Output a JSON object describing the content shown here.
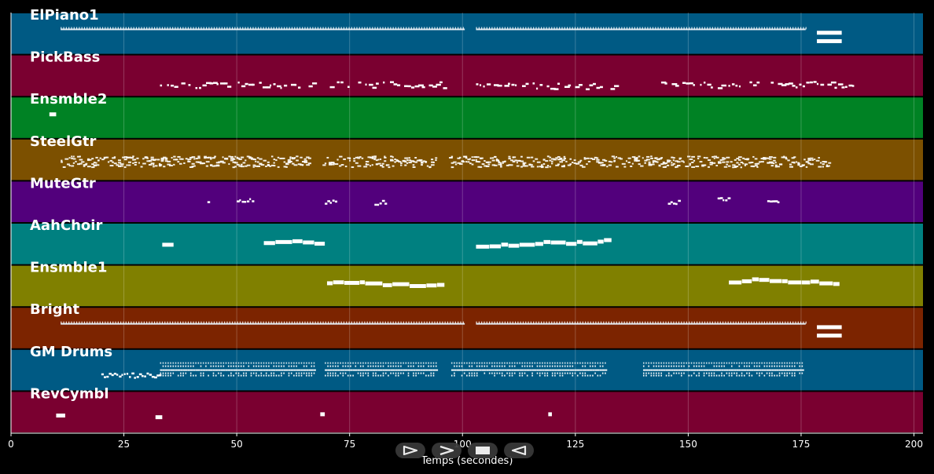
{
  "chart_data": {
    "type": "piano-roll",
    "xlabel": "Temps (secondes)",
    "xlim": [
      0,
      202
    ],
    "xticks": [
      0,
      25,
      50,
      75,
      100,
      125,
      150,
      175,
      200
    ],
    "grid": true,
    "tracks": [
      {
        "name": "ElPiano1",
        "color": "#005a84",
        "notes": [
          {
            "x": [
              11,
              100.5
            ],
            "y": 0.4,
            "style": "tick-run"
          },
          {
            "x": [
              103,
              176
            ],
            "y": 0.4,
            "style": "tick-run"
          },
          {
            "x": [
              178.5,
              184
            ],
            "y": 0.48,
            "style": "block"
          },
          {
            "x": [
              178.5,
              184
            ],
            "y": 0.68,
            "style": "block"
          }
        ]
      },
      {
        "name": "PickBass",
        "color": "#7a0030",
        "notes": [
          {
            "x": [
              33,
              97
            ],
            "y": 0.72,
            "style": "scatter"
          },
          {
            "x": [
              103,
              134
            ],
            "y": 0.75,
            "style": "scatter"
          },
          {
            "x": [
              144,
              187
            ],
            "y": 0.72,
            "style": "scatter"
          }
        ]
      },
      {
        "name": "Ensmble2",
        "color": "#008224",
        "notes": [
          {
            "x": [
              8.5,
              10
            ],
            "y": 0.42,
            "style": "block"
          }
        ]
      },
      {
        "name": "SteelGtr",
        "color": "#7c5000",
        "notes": [
          {
            "x": [
              11,
              66
            ],
            "y": 0.55,
            "style": "dense"
          },
          {
            "x": [
              69,
              94
            ],
            "y": 0.55,
            "style": "dense"
          },
          {
            "x": [
              97,
              133
            ],
            "y": 0.55,
            "style": "dense"
          },
          {
            "x": [
              133,
              181
            ],
            "y": 0.55,
            "style": "dense"
          }
        ]
      },
      {
        "name": "MuteGtr",
        "color": "#52007c",
        "notes": [
          {
            "x": [
              43.5,
              44
            ],
            "y": 0.5,
            "style": "sparse"
          },
          {
            "x": [
              50,
              53.5
            ],
            "y": 0.48,
            "style": "sparse"
          },
          {
            "x": [
              69.5,
              72
            ],
            "y": 0.52,
            "style": "sparse"
          },
          {
            "x": [
              80.5,
              83
            ],
            "y": 0.52,
            "style": "sparse"
          },
          {
            "x": [
              145.5,
              148
            ],
            "y": 0.52,
            "style": "sparse"
          },
          {
            "x": [
              156.5,
              159
            ],
            "y": 0.45,
            "style": "sparse"
          },
          {
            "x": [
              167.5,
              170
            ],
            "y": 0.52,
            "style": "sparse"
          }
        ]
      },
      {
        "name": "AahChoir",
        "color": "#008080",
        "notes": [
          {
            "x": [
              33.5,
              36
            ],
            "y": 0.52,
            "style": "block"
          },
          {
            "x": [
              56,
              69.5
            ],
            "y": 0.52,
            "style": "melody"
          },
          {
            "x": [
              103,
              133
            ],
            "y": 0.52,
            "style": "melody"
          }
        ]
      },
      {
        "name": "Ensmble1",
        "color": "#808000",
        "notes": [
          {
            "x": [
              70,
              96
            ],
            "y": 0.45,
            "style": "melody"
          },
          {
            "x": [
              159,
              183.5
            ],
            "y": 0.45,
            "style": "melody"
          }
        ]
      },
      {
        "name": "Bright",
        "color": "#7c2400",
        "notes": [
          {
            "x": [
              11,
              100.5
            ],
            "y": 0.4,
            "style": "tick-run"
          },
          {
            "x": [
              103,
              176
            ],
            "y": 0.4,
            "style": "tick-run"
          },
          {
            "x": [
              178.5,
              184
            ],
            "y": 0.48,
            "style": "block"
          },
          {
            "x": [
              178.5,
              184
            ],
            "y": 0.68,
            "style": "block"
          }
        ]
      },
      {
        "name": "GM Drums",
        "color": "#005a84",
        "notes": [
          {
            "x": [
              20,
              33
            ],
            "y": 0.63,
            "style": "sparse"
          },
          {
            "x": [
              33,
              67.5
            ],
            "y": 0.5,
            "style": "drums"
          },
          {
            "x": [
              69.5,
              94.5
            ],
            "y": 0.5,
            "style": "drums"
          },
          {
            "x": [
              97.5,
              131.5
            ],
            "y": 0.5,
            "style": "drums"
          },
          {
            "x": [
              140,
              175.5
            ],
            "y": 0.5,
            "style": "drums"
          }
        ]
      },
      {
        "name": "RevCymbl",
        "color": "#7a0030",
        "notes": [
          {
            "x": [
              10,
              12
            ],
            "y": 0.58,
            "style": "block"
          },
          {
            "x": [
              32,
              33.5
            ],
            "y": 0.62,
            "style": "block"
          },
          {
            "x": [
              68.5,
              69.5
            ],
            "y": 0.55,
            "style": "block"
          },
          {
            "x": [
              119,
              119.8
            ],
            "y": 0.55,
            "style": "block"
          }
        ]
      }
    ]
  },
  "controls": [
    {
      "name": "play-forward-button",
      "icon": "play-outline-icon"
    },
    {
      "name": "next-button",
      "icon": "chevron-right-icon"
    },
    {
      "name": "stop-button",
      "icon": "stop-square-icon"
    },
    {
      "name": "reverse-button",
      "icon": "play-reverse-icon"
    }
  ]
}
